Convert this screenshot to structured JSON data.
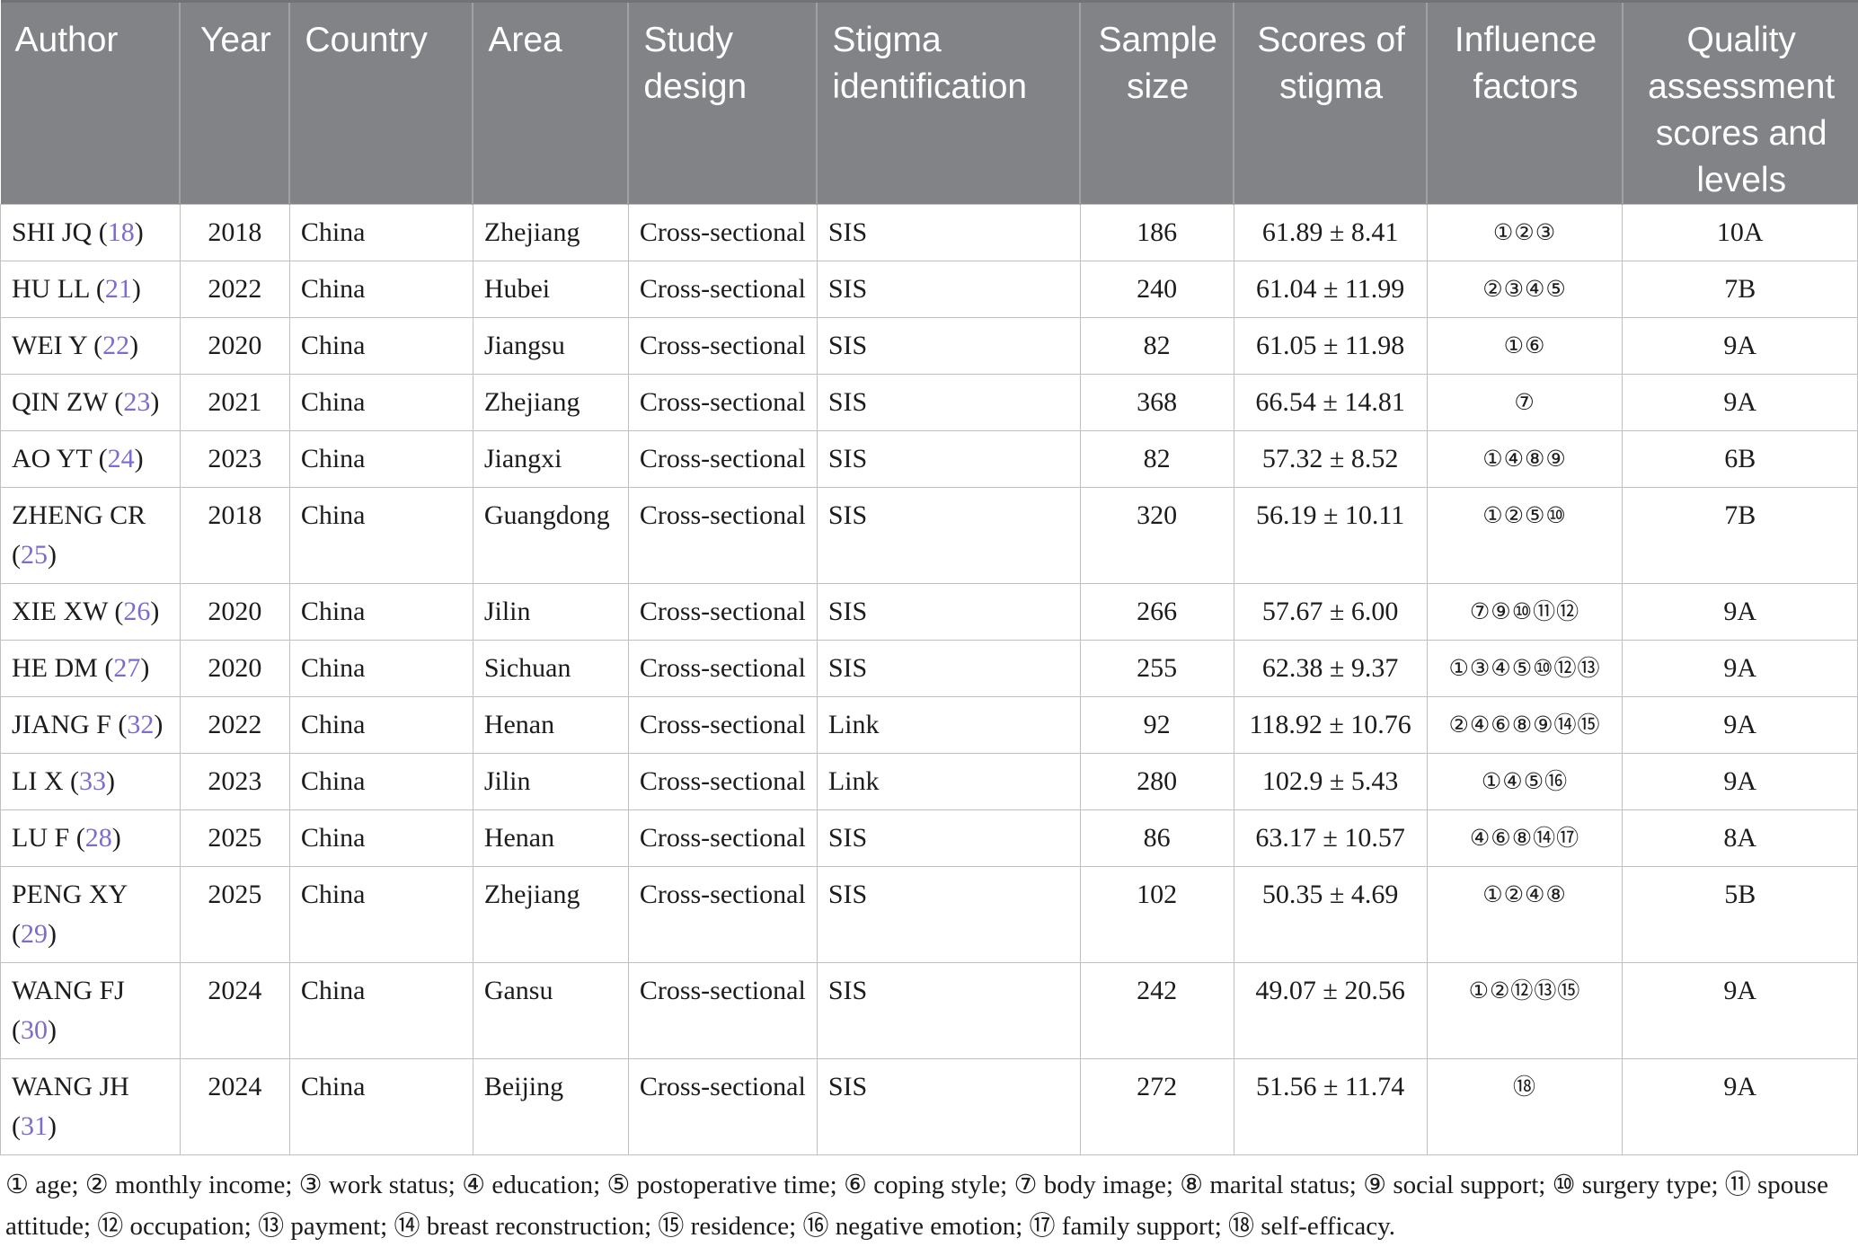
{
  "table": {
    "columns": [
      "Author",
      "Year",
      "Country",
      "Area",
      "Study design",
      "Stigma identification",
      "Sample size",
      "Scores of stigma",
      "Influence factors",
      "Quality assessment scores and levels"
    ],
    "rows": [
      {
        "author": "SHI JQ",
        "ref": "18",
        "year": "2018",
        "country": "China",
        "area": "Zhejiang",
        "study_design": "Cross-sectional",
        "stigma_identification": "SIS",
        "sample_size": "186",
        "scores_of_stigma": "61.89 ± 8.41",
        "influence_factors": "①②③",
        "quality": "10A"
      },
      {
        "author": "HU LL",
        "ref": "21",
        "year": "2022",
        "country": "China",
        "area": "Hubei",
        "study_design": "Cross-sectional",
        "stigma_identification": "SIS",
        "sample_size": "240",
        "scores_of_stigma": "61.04 ± 11.99",
        "influence_factors": "②③④⑤",
        "quality": "7B"
      },
      {
        "author": "WEI Y",
        "ref": "22",
        "year": "2020",
        "country": "China",
        "area": "Jiangsu",
        "study_design": "Cross-sectional",
        "stigma_identification": "SIS",
        "sample_size": "82",
        "scores_of_stigma": "61.05 ± 11.98",
        "influence_factors": "①⑥",
        "quality": "9A"
      },
      {
        "author": "QIN ZW",
        "ref": "23",
        "year": "2021",
        "country": "China",
        "area": "Zhejiang",
        "study_design": "Cross-sectional",
        "stigma_identification": "SIS",
        "sample_size": "368",
        "scores_of_stigma": "66.54 ± 14.81",
        "influence_factors": "⑦",
        "quality": "9A"
      },
      {
        "author": "AO YT",
        "ref": "24",
        "year": "2023",
        "country": "China",
        "area": "Jiangxi",
        "study_design": "Cross-sectional",
        "stigma_identification": "SIS",
        "sample_size": "82",
        "scores_of_stigma": "57.32 ± 8.52",
        "influence_factors": "①④⑧⑨",
        "quality": "6B"
      },
      {
        "author": "ZHENG CR",
        "ref": "25",
        "year": "2018",
        "country": "China",
        "area": "Guangdong",
        "study_design": "Cross-sectional",
        "stigma_identification": "SIS",
        "sample_size": "320",
        "scores_of_stigma": "56.19 ± 10.11",
        "influence_factors": "①②⑤⑩",
        "quality": "7B"
      },
      {
        "author": "XIE XW",
        "ref": "26",
        "year": "2020",
        "country": "China",
        "area": "Jilin",
        "study_design": "Cross-sectional",
        "stigma_identification": "SIS",
        "sample_size": "266",
        "scores_of_stigma": "57.67 ± 6.00",
        "influence_factors": "⑦⑨⑩⑪⑫",
        "quality": "9A"
      },
      {
        "author": "HE DM",
        "ref": "27",
        "year": "2020",
        "country": "China",
        "area": "Sichuan",
        "study_design": "Cross-sectional",
        "stigma_identification": "SIS",
        "sample_size": "255",
        "scores_of_stigma": "62.38 ± 9.37",
        "influence_factors": "①③④⑤⑩⑫⑬",
        "quality": "9A"
      },
      {
        "author": "JIANG F",
        "ref": "32",
        "year": "2022",
        "country": "China",
        "area": "Henan",
        "study_design": "Cross-sectional",
        "stigma_identification": "Link",
        "sample_size": "92",
        "scores_of_stigma": "118.92 ± 10.76",
        "influence_factors": "②④⑥⑧⑨⑭⑮",
        "quality": "9A"
      },
      {
        "author": "LI X",
        "ref": "33",
        "year": "2023",
        "country": "China",
        "area": "Jilin",
        "study_design": "Cross-sectional",
        "stigma_identification": "Link",
        "sample_size": "280",
        "scores_of_stigma": "102.9 ± 5.43",
        "influence_factors": "①④⑤⑯",
        "quality": "9A"
      },
      {
        "author": "LU F",
        "ref": "28",
        "year": "2025",
        "country": "China",
        "area": "Henan",
        "study_design": "Cross-sectional",
        "stigma_identification": "SIS",
        "sample_size": "86",
        "scores_of_stigma": "63.17 ± 10.57",
        "influence_factors": "④⑥⑧⑭⑰",
        "quality": "8A"
      },
      {
        "author": "PENG XY",
        "ref": "29",
        "year": "2025",
        "country": "China",
        "area": "Zhejiang",
        "study_design": "Cross-sectional",
        "stigma_identification": "SIS",
        "sample_size": "102",
        "scores_of_stigma": "50.35 ± 4.69",
        "influence_factors": "①②④⑧",
        "quality": "5B"
      },
      {
        "author": "WANG FJ",
        "ref": "30",
        "year": "2024",
        "country": "China",
        "area": "Gansu",
        "study_design": "Cross-sectional",
        "stigma_identification": "SIS",
        "sample_size": "242",
        "scores_of_stigma": "49.07 ± 20.56",
        "influence_factors": "①②⑫⑬⑮",
        "quality": "9A"
      },
      {
        "author": "WANG JH",
        "ref": "31",
        "year": "2024",
        "country": "China",
        "area": "Beijing",
        "study_design": "Cross-sectional",
        "stigma_identification": "SIS",
        "sample_size": "272",
        "scores_of_stigma": "51.56 ± 11.74",
        "influence_factors": "⑱",
        "quality": "9A"
      }
    ]
  },
  "footnote": "① age; ② monthly income; ③ work status; ④ education; ⑤ postoperative time; ⑥ coping style; ⑦ body image; ⑧ marital status; ⑨ social support; ⑩ surgery type; ⑪ spouse attitude; ⑫ occupation; ⑬ payment; ⑭ breast reconstruction; ⑮ residence; ⑯ negative emotion; ⑰ family support; ⑱ self-efficacy.",
  "colors": {
    "header_bg": "#818386",
    "header_text": "#ffffff",
    "body_text": "#1c1c1e",
    "reference": "#7b6ccf",
    "grid_line": "#bfc0c2"
  }
}
